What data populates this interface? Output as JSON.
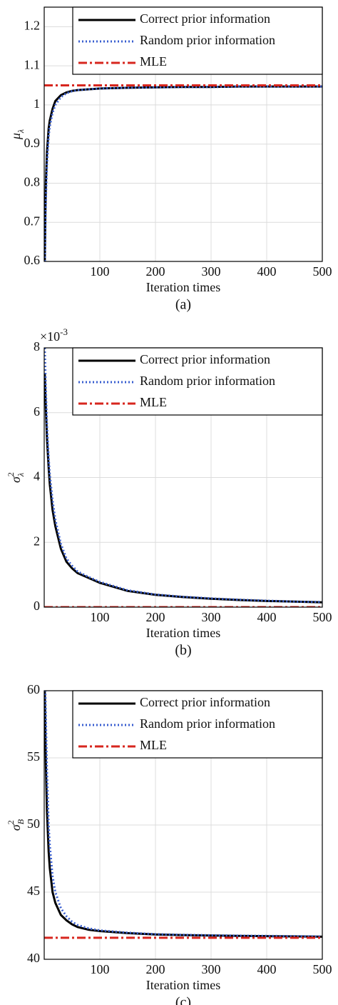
{
  "chart_data": [
    {
      "type": "line",
      "ylabel": {
        "base": "μ",
        "sub": "λ"
      },
      "xlabel": "Iteration times",
      "caption": "(a)",
      "xlim": [
        0,
        500
      ],
      "ylim": [
        0.6,
        1.25
      ],
      "xticks": [
        100,
        200,
        300,
        400,
        500
      ],
      "yticks": [
        0.6,
        0.7,
        0.8,
        0.9,
        1,
        1.1,
        1.2
      ],
      "grid": true,
      "legend": "upper right",
      "series": [
        {
          "name": "Correct prior information",
          "color": "#000000",
          "line_style": "solid",
          "x": [
            1,
            2,
            3,
            5,
            8,
            10,
            15,
            20,
            30,
            40,
            50,
            60,
            80,
            100,
            150,
            200,
            250,
            300,
            350,
            400,
            450,
            500
          ],
          "values": [
            0.6,
            0.72,
            0.8,
            0.88,
            0.94,
            0.96,
            0.99,
            1.01,
            1.025,
            1.032,
            1.036,
            1.038,
            1.04,
            1.042,
            1.044,
            1.045,
            1.046,
            1.046,
            1.047,
            1.047,
            1.047,
            1.047
          ]
        },
        {
          "name": "Random prior information",
          "color": "#3a5fd0",
          "line_style": "dotted",
          "x": [
            1,
            2,
            3,
            5,
            8,
            10,
            15,
            20,
            30,
            40,
            50,
            60,
            80,
            100,
            150,
            200,
            250,
            300,
            350,
            400,
            450,
            500
          ],
          "values": [
            0.6,
            0.68,
            0.76,
            0.85,
            0.92,
            0.945,
            0.98,
            1.0,
            1.02,
            1.03,
            1.035,
            1.038,
            1.04,
            1.042,
            1.044,
            1.045,
            1.046,
            1.046,
            1.047,
            1.047,
            1.047,
            1.047
          ]
        },
        {
          "name": "MLE",
          "color": "#d7261e",
          "line_style": "dashdot",
          "x": [
            0,
            500
          ],
          "values": [
            1.05,
            1.05
          ]
        }
      ]
    },
    {
      "type": "line",
      "ylabel": {
        "base": "σ",
        "sup": "2",
        "sub": "λ"
      },
      "axis_multiplier": {
        "base": "×10",
        "sup": "-3"
      },
      "xlabel": "Iteration times",
      "caption": "(b)",
      "xlim": [
        0,
        500
      ],
      "ylim": [
        0,
        8
      ],
      "xticks": [
        100,
        200,
        300,
        400,
        500
      ],
      "yticks": [
        0,
        2,
        4,
        6,
        8
      ],
      "grid": true,
      "legend": "upper right",
      "series": [
        {
          "name": "Correct prior information",
          "color": "#000000",
          "line_style": "solid",
          "x": [
            1,
            2,
            3,
            5,
            8,
            10,
            15,
            20,
            30,
            40,
            50,
            60,
            80,
            100,
            150,
            200,
            250,
            300,
            350,
            400,
            450,
            500
          ],
          "values": [
            7.2,
            6.6,
            6.1,
            5.2,
            4.3,
            3.8,
            3.0,
            2.5,
            1.8,
            1.4,
            1.2,
            1.05,
            0.9,
            0.75,
            0.5,
            0.38,
            0.31,
            0.26,
            0.22,
            0.19,
            0.17,
            0.15
          ]
        },
        {
          "name": "Random prior information",
          "color": "#3a5fd0",
          "line_style": "dotted",
          "x": [
            1,
            2,
            3,
            5,
            8,
            10,
            15,
            20,
            30,
            40,
            50,
            60,
            80,
            100,
            150,
            200,
            250,
            300,
            350,
            400,
            450,
            500
          ],
          "values": [
            8.0,
            7.3,
            6.7,
            5.6,
            4.6,
            4.1,
            3.3,
            2.7,
            1.95,
            1.5,
            1.28,
            1.1,
            0.93,
            0.78,
            0.52,
            0.39,
            0.32,
            0.27,
            0.23,
            0.2,
            0.17,
            0.16
          ]
        },
        {
          "name": "MLE",
          "color": "#d7261e",
          "line_style": "dashdot",
          "x": [
            0,
            500
          ],
          "values": [
            0,
            0
          ]
        }
      ]
    },
    {
      "type": "line",
      "ylabel": {
        "base": "σ",
        "sup": "2",
        "sub": "B"
      },
      "xlabel": "Iteration times",
      "caption": "(c)",
      "xlim": [
        0,
        500
      ],
      "ylim": [
        40,
        60
      ],
      "xticks": [
        100,
        200,
        300,
        400,
        500
      ],
      "yticks": [
        40,
        45,
        50,
        55,
        60
      ],
      "grid": true,
      "legend": "upper right",
      "series": [
        {
          "name": "Correct prior information",
          "color": "#000000",
          "line_style": "solid",
          "x": [
            1,
            2,
            3,
            5,
            8,
            10,
            15,
            20,
            30,
            40,
            50,
            60,
            80,
            100,
            150,
            200,
            250,
            300,
            350,
            400,
            450,
            500
          ],
          "values": [
            60,
            57,
            54.5,
            51,
            48,
            46.8,
            45,
            44.2,
            43.3,
            42.9,
            42.6,
            42.4,
            42.2,
            42.1,
            41.95,
            41.85,
            41.8,
            41.77,
            41.74,
            41.72,
            41.7,
            41.68
          ]
        },
        {
          "name": "Random prior information",
          "color": "#3a5fd0",
          "line_style": "dotted",
          "x": [
            1,
            2,
            3,
            5,
            8,
            10,
            15,
            20,
            30,
            40,
            50,
            60,
            80,
            100,
            150,
            200,
            250,
            300,
            350,
            400,
            450,
            500
          ],
          "values": [
            60,
            60,
            58,
            54,
            50,
            48.5,
            46.2,
            45,
            43.8,
            43.2,
            42.8,
            42.55,
            42.3,
            42.15,
            41.98,
            41.87,
            41.82,
            41.79,
            41.76,
            41.74,
            41.72,
            41.7
          ]
        },
        {
          "name": "MLE",
          "color": "#d7261e",
          "line_style": "dashdot",
          "x": [
            0,
            500
          ],
          "values": [
            41.6,
            41.6
          ]
        }
      ]
    }
  ]
}
